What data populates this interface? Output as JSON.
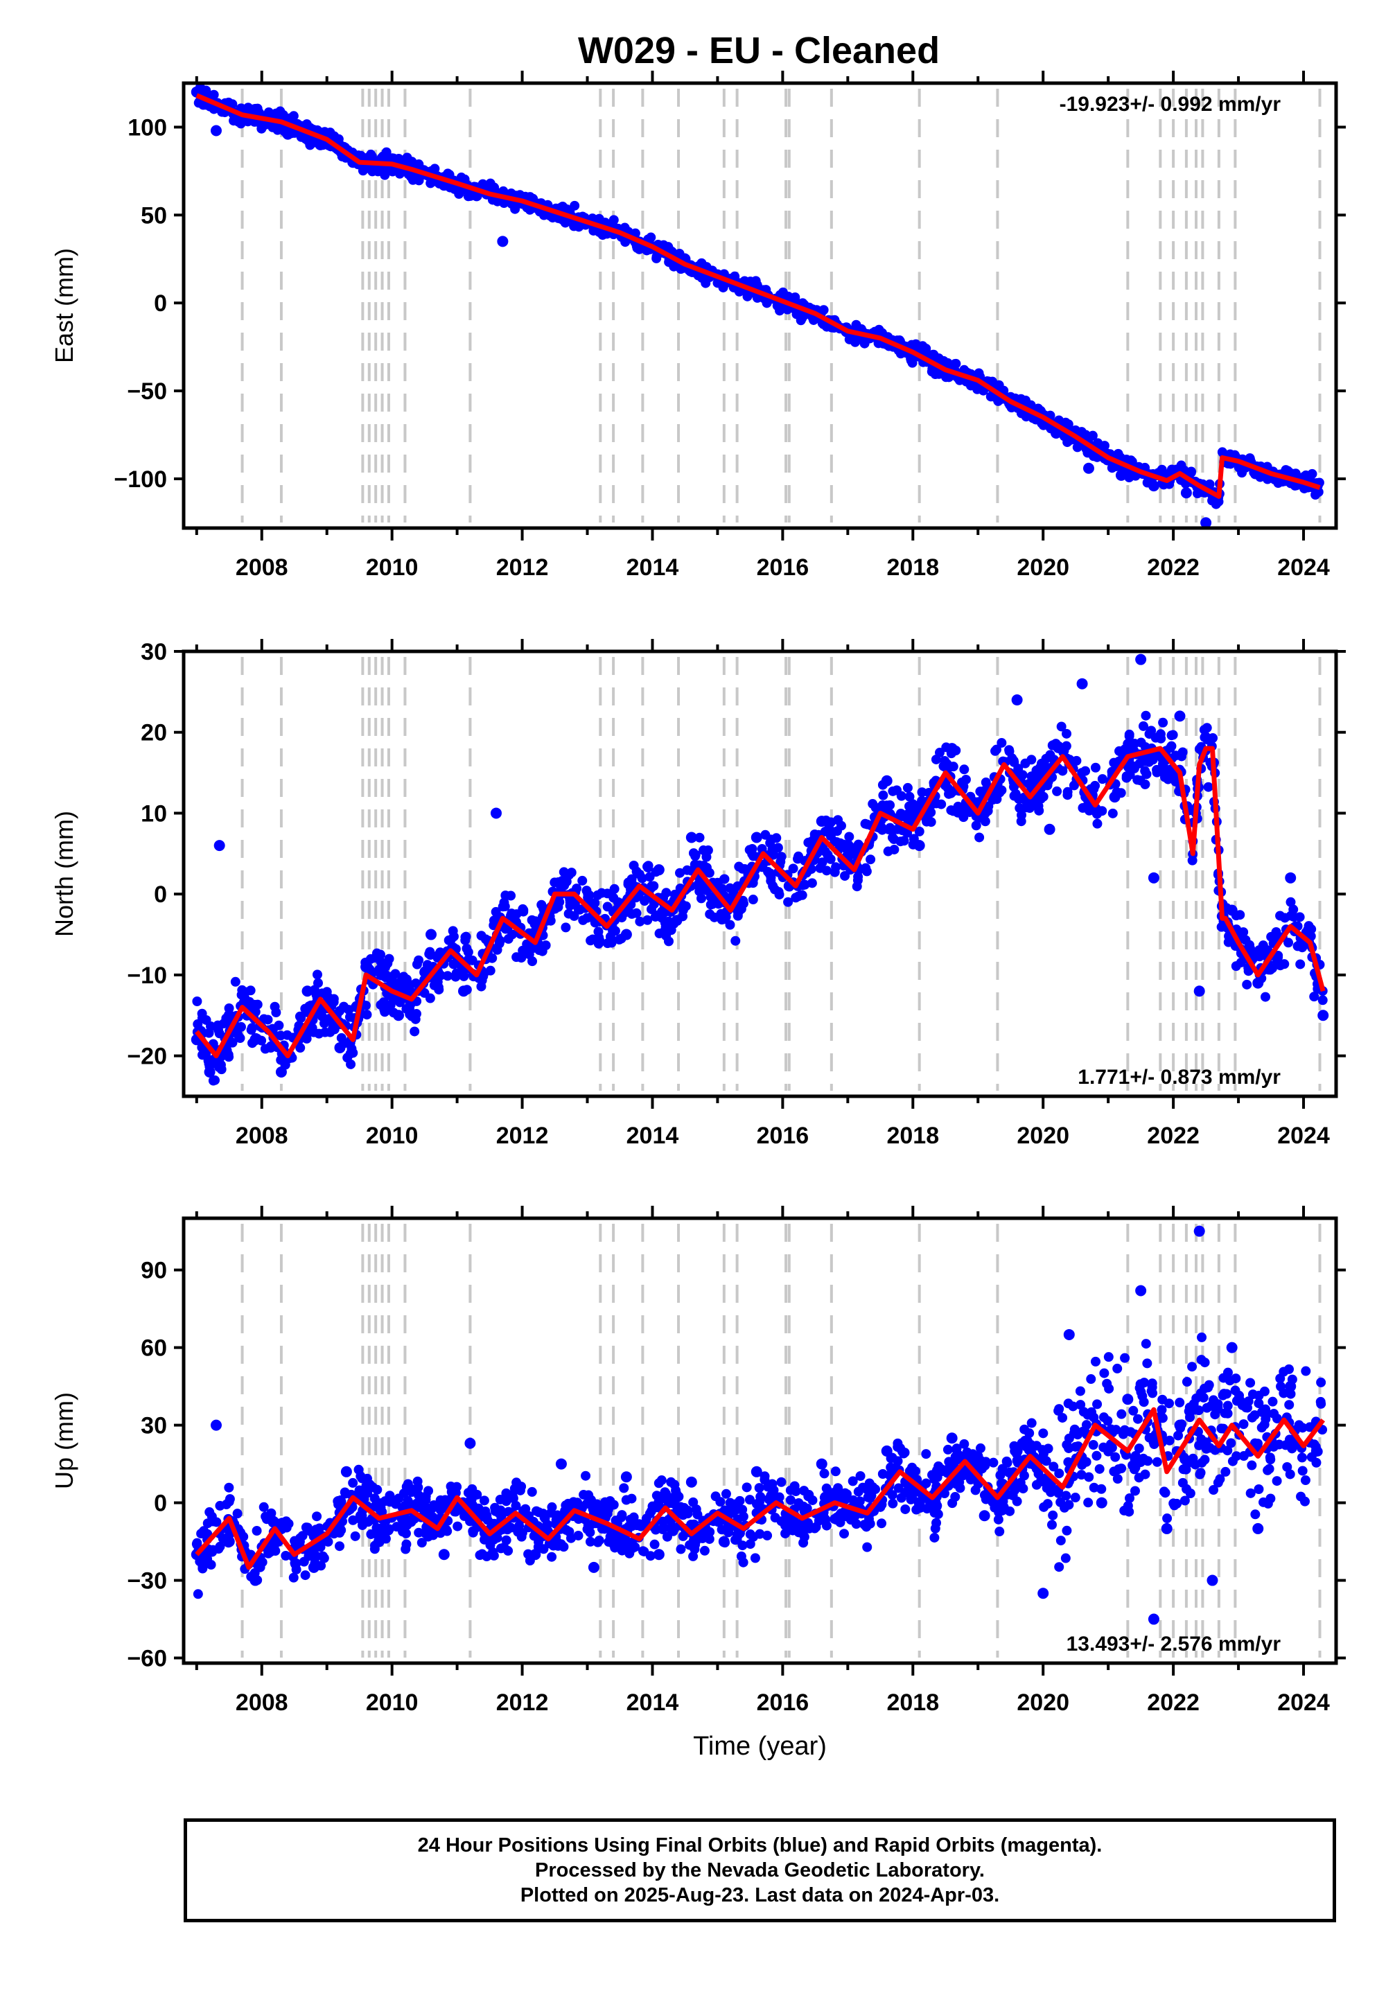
{
  "title": "W029  - EU - Cleaned",
  "footer": {
    "line1": "24 Hour Positions Using Final Orbits (blue) and Rapid Orbits (magenta).",
    "line2": "Processed by the Nevada Geodetic Laboratory.",
    "line3": "Plotted on 2025-Aug-23. Last data on 2024-Apr-03."
  },
  "colors": {
    "observations": "#0000ff",
    "model": "#ff0000",
    "event_lines": "#c8c8c8",
    "axes": "#000000"
  },
  "chart_data": [
    {
      "type": "scatter",
      "ylabel": "East (mm)",
      "xlabel": "",
      "xlim": [
        2006.8,
        2024.5
      ],
      "ylim": [
        -128,
        125
      ],
      "yticks": [
        100,
        50,
        0,
        -50,
        -100
      ],
      "xticks": [
        2008,
        2010,
        2012,
        2014,
        2016,
        2018,
        2020,
        2022,
        2024
      ],
      "rate_label": "-19.923+/- 0.992 mm/yr",
      "rate_position": "top-right",
      "grid": false,
      "model_series": {
        "name": "",
        "x": [
          2007.0,
          2007.7,
          2008.3,
          2009.0,
          2009.5,
          2010.0,
          2010.3,
          2011.0,
          2011.5,
          2012.0,
          2012.5,
          2013.0,
          2013.5,
          2014.0,
          2014.5,
          2015.0,
          2015.5,
          2016.0,
          2016.5,
          2017.0,
          2017.5,
          2018.0,
          2018.5,
          2019.0,
          2019.5,
          2020.0,
          2020.5,
          2021.0,
          2021.5,
          2021.9,
          2022.1,
          2022.4,
          2022.7,
          2022.75,
          2023.0,
          2023.5,
          2024.0,
          2024.25
        ],
        "y": [
          118,
          107,
          103,
          93,
          80,
          79,
          76,
          68,
          62,
          58,
          52,
          46,
          40,
          32,
          22,
          15,
          8,
          1,
          -6,
          -16,
          -20,
          -28,
          -38,
          -44,
          -56,
          -65,
          -76,
          -88,
          -96,
          -101,
          -97,
          -104,
          -110,
          -88,
          -90,
          -97,
          -102,
          -105
        ]
      },
      "points": {
        "name": "",
        "x": [
          2007.0,
          2007.1,
          2007.3,
          2007.6,
          2008.0,
          2008.4,
          2008.9,
          2009.4,
          2009.8,
          2010.3,
          2010.8,
          2011.3,
          2011.7,
          2012.3,
          2012.8,
          2013.4,
          2013.9,
          2014.5,
          2015.0,
          2015.6,
          2016.2,
          2016.7,
          2017.3,
          2017.9,
          2018.4,
          2019.0,
          2019.6,
          2020.2,
          2020.7,
          2021.2,
          2021.7,
          2022.2,
          2022.5,
          2022.9,
          2023.3,
          2023.8,
          2024.2
        ],
        "y": [
          120,
          115,
          98,
          105,
          104,
          96,
          90,
          80,
          78,
          72,
          67,
          61,
          35,
          55,
          48,
          43,
          34,
          25,
          16,
          10,
          -2,
          -12,
          -18,
          -28,
          -40,
          -47,
          -58,
          -74,
          -94,
          -98,
          -104,
          -108,
          -125,
          -90,
          -95,
          -100,
          -104
        ]
      },
      "events": [
        2007.7,
        2008.3,
        2009.55,
        2009.65,
        2009.75,
        2009.85,
        2009.95,
        2010.2,
        2011.2,
        2013.2,
        2013.4,
        2013.85,
        2014.4,
        2015.1,
        2015.3,
        2016.05,
        2016.1,
        2016.75,
        2018.1,
        2019.3,
        2021.3,
        2021.8,
        2022.0,
        2022.2,
        2022.35,
        2022.45,
        2022.7,
        2022.95,
        2024.25
      ]
    },
    {
      "type": "scatter",
      "ylabel": "North (mm)",
      "xlabel": "",
      "xlim": [
        2006.8,
        2024.5
      ],
      "ylim": [
        -25,
        30
      ],
      "yticks": [
        30,
        20,
        10,
        0,
        -10,
        -20
      ],
      "xticks": [
        2008,
        2010,
        2012,
        2014,
        2016,
        2018,
        2020,
        2022,
        2024
      ],
      "rate_label": "1.771+/- 0.873 mm/yr",
      "rate_position": "bottom-right",
      "grid": false,
      "model_series": {
        "name": "",
        "x": [
          2007.0,
          2007.3,
          2007.7,
          2008.1,
          2008.4,
          2008.9,
          2009.4,
          2009.6,
          2010.0,
          2010.3,
          2010.9,
          2011.3,
          2011.7,
          2012.2,
          2012.5,
          2012.8,
          2013.3,
          2013.8,
          2014.3,
          2014.7,
          2015.2,
          2015.7,
          2016.2,
          2016.6,
          2017.1,
          2017.5,
          2018.0,
          2018.5,
          2019.0,
          2019.4,
          2019.8,
          2020.3,
          2020.8,
          2021.3,
          2021.8,
          2022.1,
          2022.3,
          2022.4,
          2022.5,
          2022.6,
          2022.75,
          2022.8,
          2023.0,
          2023.3,
          2023.8,
          2024.1,
          2024.3
        ],
        "y": [
          -17,
          -20,
          -14,
          -17,
          -20,
          -13,
          -18,
          -10,
          -12,
          -13,
          -7,
          -10,
          -3,
          -6,
          0,
          0,
          -4,
          1,
          -2,
          3,
          -2,
          5,
          1,
          7,
          3,
          10,
          8,
          15,
          10,
          16,
          12,
          17,
          11,
          17,
          18,
          15,
          5,
          16,
          18,
          18,
          -3,
          -3,
          -6,
          -10,
          -4,
          -6,
          -12
        ]
      },
      "points": {
        "name": "",
        "x": [
          2007.0,
          2007.2,
          2007.35,
          2007.5,
          2007.9,
          2008.3,
          2008.7,
          2009.2,
          2009.6,
          2010.1,
          2010.6,
          2011.1,
          2011.6,
          2012.1,
          2012.6,
          2013.1,
          2013.6,
          2014.1,
          2014.6,
          2015.1,
          2015.6,
          2016.1,
          2016.6,
          2017.1,
          2017.6,
          2018.1,
          2018.6,
          2019.1,
          2019.6,
          2020.1,
          2020.6,
          2021.1,
          2021.5,
          2021.7,
          2022.1,
          2022.4,
          2022.6,
          2022.9,
          2023.3,
          2023.8,
          2024.3
        ],
        "y": [
          -18,
          -22,
          6,
          -15,
          -18,
          -22,
          -12,
          -19,
          -9,
          -15,
          -5,
          -12,
          10,
          -7,
          1,
          -2,
          -5,
          3,
          7,
          -3,
          7,
          1,
          9,
          5,
          14,
          6,
          18,
          10,
          24,
          8,
          26,
          12,
          29,
          2,
          22,
          -12,
          16,
          -2,
          -11,
          2,
          -15
        ]
      },
      "events": [
        2007.7,
        2008.3,
        2009.55,
        2009.65,
        2009.75,
        2009.85,
        2009.95,
        2010.2,
        2011.2,
        2013.2,
        2013.4,
        2013.85,
        2014.4,
        2015.1,
        2015.3,
        2016.05,
        2016.1,
        2016.75,
        2018.1,
        2019.3,
        2021.3,
        2021.8,
        2022.0,
        2022.2,
        2022.35,
        2022.45,
        2022.7,
        2022.95,
        2024.25
      ]
    },
    {
      "type": "scatter",
      "ylabel": "Up (mm)",
      "xlabel": "Time (year)",
      "xlim": [
        2006.8,
        2024.5
      ],
      "ylim": [
        -62,
        110
      ],
      "yticks": [
        90,
        60,
        30,
        0,
        -30,
        -60
      ],
      "xticks": [
        2008,
        2010,
        2012,
        2014,
        2016,
        2018,
        2020,
        2022,
        2024
      ],
      "rate_label": "13.493+/- 2.576 mm/yr",
      "rate_position": "bottom-right",
      "grid": false,
      "model_series": {
        "name": "",
        "x": [
          2007.0,
          2007.5,
          2007.8,
          2008.2,
          2008.5,
          2009.0,
          2009.4,
          2009.8,
          2010.3,
          2010.7,
          2011.0,
          2011.5,
          2011.9,
          2012.4,
          2012.8,
          2013.3,
          2013.8,
          2014.2,
          2014.6,
          2015.0,
          2015.4,
          2015.9,
          2016.3,
          2016.8,
          2017.3,
          2017.8,
          2018.3,
          2018.8,
          2019.3,
          2019.8,
          2020.3,
          2020.8,
          2021.3,
          2021.7,
          2021.9,
          2022.2,
          2022.4,
          2022.7,
          2022.9,
          2023.3,
          2023.7,
          2024.0,
          2024.3
        ],
        "y": [
          -20,
          -6,
          -25,
          -10,
          -20,
          -12,
          2,
          -6,
          -3,
          -10,
          2,
          -12,
          -4,
          -14,
          -3,
          -8,
          -14,
          -2,
          -12,
          -4,
          -10,
          0,
          -6,
          0,
          -4,
          12,
          2,
          16,
          2,
          18,
          6,
          30,
          20,
          36,
          12,
          24,
          32,
          22,
          30,
          18,
          32,
          22,
          32
        ]
      },
      "points": {
        "name": "",
        "x": [
          2007.0,
          2007.3,
          2007.5,
          2007.9,
          2008.3,
          2008.8,
          2009.3,
          2009.8,
          2010.3,
          2010.8,
          2011.2,
          2011.7,
          2012.2,
          2012.6,
          2013.1,
          2013.6,
          2014.1,
          2014.6,
          2015.1,
          2015.6,
          2016.1,
          2016.6,
          2017.1,
          2017.6,
          2018.1,
          2018.6,
          2019.1,
          2019.6,
          2020.0,
          2020.4,
          2020.9,
          2021.3,
          2021.5,
          2021.7,
          2021.9,
          2022.1,
          2022.4,
          2022.6,
          2022.9,
          2023.3,
          2023.8,
          2024.2
        ],
        "y": [
          -20,
          30,
          -15,
          -30,
          -10,
          -25,
          12,
          -15,
          5,
          -20,
          23,
          -10,
          -20,
          15,
          -25,
          10,
          -20,
          8,
          -15,
          12,
          -10,
          15,
          -5,
          20,
          0,
          25,
          -5,
          20,
          -35,
          65,
          0,
          40,
          82,
          -45,
          -10,
          30,
          105,
          -30,
          60,
          -10,
          45,
          20
        ]
      },
      "events": [
        2007.7,
        2008.3,
        2009.55,
        2009.65,
        2009.75,
        2009.85,
        2009.95,
        2010.2,
        2011.2,
        2013.2,
        2013.4,
        2013.85,
        2014.4,
        2015.1,
        2015.3,
        2016.05,
        2016.1,
        2016.75,
        2018.1,
        2019.3,
        2021.3,
        2021.8,
        2022.0,
        2022.2,
        2022.35,
        2022.45,
        2022.7,
        2022.95,
        2024.25
      ]
    }
  ]
}
